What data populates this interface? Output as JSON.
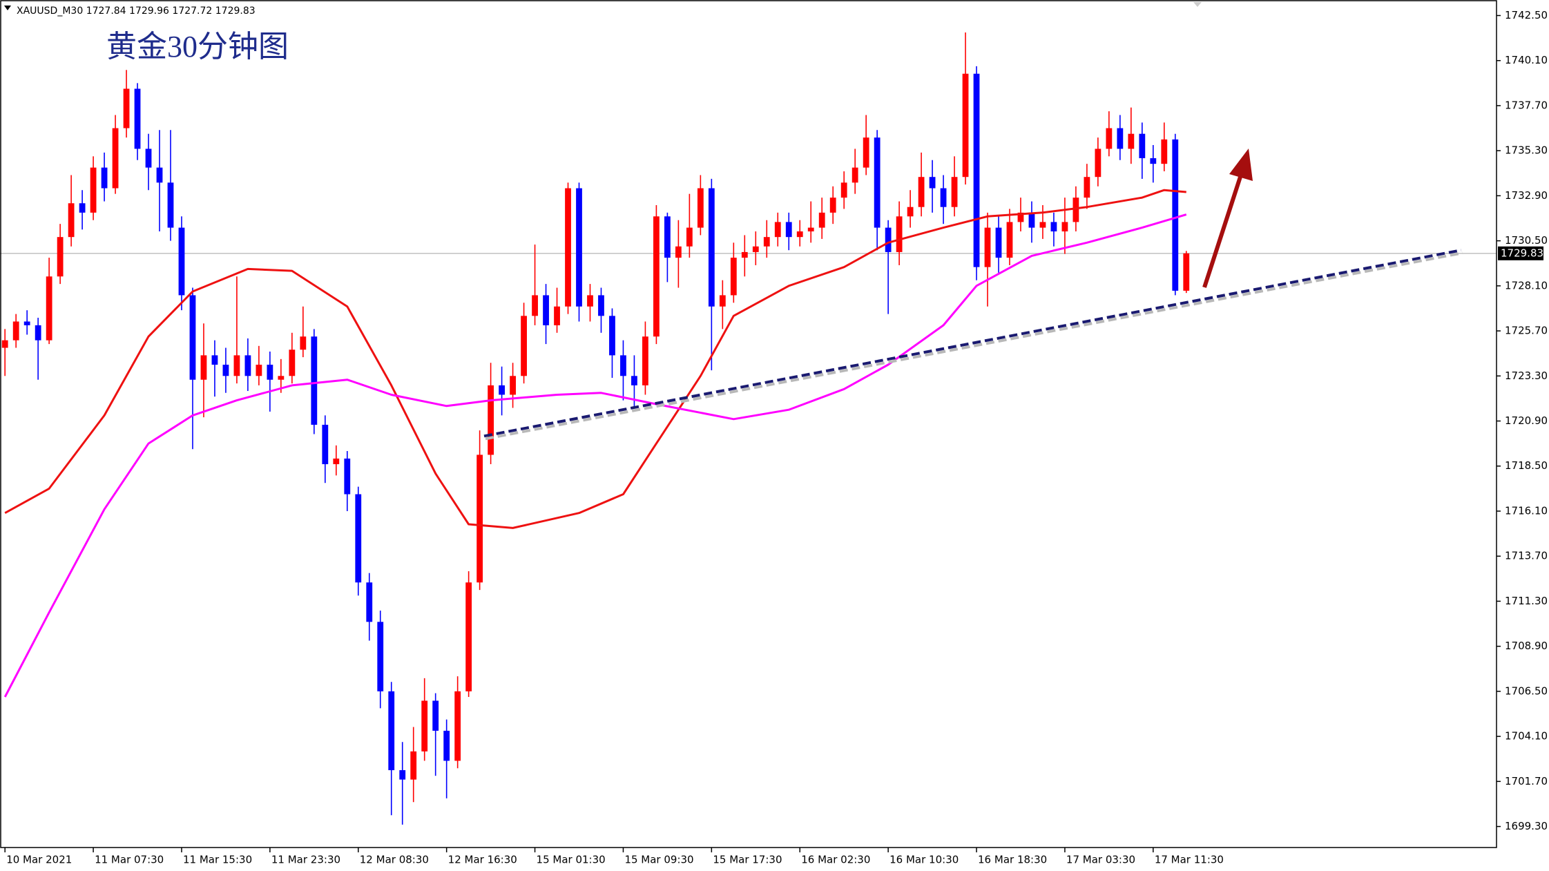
{
  "chart_data": {
    "type": "candlestick",
    "symbol": "XAUUSD_M30",
    "title": "黄金30分钟图",
    "up_color": "#ff0000",
    "down_color": "#0000ff",
    "open": [
      1724.8,
      1725.2,
      1726.2,
      1726.0,
      1725.2,
      1728.6,
      1730.7,
      1732.5,
      1732.0,
      1734.4,
      1733.3,
      1736.5,
      1738.6,
      1735.4,
      1734.4,
      1733.6,
      1731.2,
      1727.6,
      1723.1,
      1724.4,
      1723.9,
      1723.3,
      1724.4,
      1723.3,
      1723.9,
      1723.1,
      1723.3,
      1724.7,
      1725.4,
      1720.7,
      1718.6,
      1718.9,
      1717.0,
      1712.3,
      1710.2,
      1706.5,
      1702.3,
      1701.8,
      1703.3,
      1706.0,
      1704.4,
      1702.8,
      1706.5,
      1712.3,
      1719.1,
      1722.8,
      1722.3,
      1723.3,
      1726.5,
      1727.6,
      1726.0,
      1727.0,
      1733.3,
      1727.0,
      1727.6,
      1726.5,
      1724.4,
      1723.3,
      1722.8,
      1725.4,
      1731.8,
      1729.6,
      1730.2,
      1731.2,
      1733.3,
      1727.0,
      1727.6,
      1729.6,
      1729.9,
      1730.2,
      1730.7,
      1731.5,
      1730.7,
      1731.0,
      1731.2,
      1732.0,
      1732.8,
      1733.6,
      1734.4,
      1736.0,
      1731.2,
      1729.9,
      1731.8,
      1732.3,
      1733.9,
      1733.3,
      1732.3,
      1733.9,
      1739.4,
      1729.1,
      1731.2,
      1729.6,
      1731.5,
      1732.0,
      1731.2,
      1731.5,
      1731.0,
      1731.5,
      1732.8,
      1733.9,
      1735.4,
      1736.5,
      1735.4,
      1736.2,
      1734.9,
      1734.6,
      1735.9,
      1727.84
    ],
    "high": [
      1725.8,
      1726.6,
      1726.8,
      1726.4,
      1729.6,
      1731.4,
      1734.0,
      1733.2,
      1735.0,
      1735.2,
      1737.2,
      1739.6,
      1738.9,
      1736.2,
      1736.4,
      1736.4,
      1731.8,
      1728.0,
      1726.1,
      1725.2,
      1724.8,
      1728.6,
      1725.3,
      1724.9,
      1724.6,
      1724.2,
      1725.6,
      1727.0,
      1725.8,
      1721.2,
      1719.6,
      1719.3,
      1717.4,
      1712.8,
      1710.8,
      1707.0,
      1703.8,
      1704.6,
      1707.2,
      1706.4,
      1705.0,
      1707.3,
      1712.9,
      1720.4,
      1724.0,
      1723.8,
      1724.0,
      1727.2,
      1730.3,
      1728.2,
      1728.0,
      1733.6,
      1733.6,
      1728.2,
      1728.0,
      1726.9,
      1725.2,
      1724.4,
      1726.2,
      1732.4,
      1732.0,
      1731.6,
      1733.0,
      1734.0,
      1733.8,
      1728.4,
      1730.4,
      1730.8,
      1731.0,
      1731.6,
      1732.0,
      1732.0,
      1731.6,
      1732.6,
      1732.8,
      1733.4,
      1734.2,
      1735.4,
      1737.2,
      1736.4,
      1731.6,
      1732.6,
      1733.2,
      1735.2,
      1734.8,
      1734.0,
      1735.0,
      1741.6,
      1739.8,
      1732.0,
      1731.8,
      1732.2,
      1732.8,
      1732.6,
      1732.4,
      1732.0,
      1732.8,
      1733.4,
      1734.6,
      1736.0,
      1737.4,
      1737.2,
      1737.6,
      1736.8,
      1735.6,
      1736.8,
      1736.2,
      1729.96
    ],
    "low": [
      1723.3,
      1724.8,
      1725.5,
      1723.1,
      1725.0,
      1728.2,
      1730.2,
      1731.1,
      1731.6,
      1732.6,
      1733.0,
      1736.0,
      1734.8,
      1733.2,
      1731.0,
      1730.5,
      1726.8,
      1719.4,
      1721.1,
      1722.2,
      1722.4,
      1722.9,
      1722.5,
      1722.8,
      1721.4,
      1722.4,
      1722.9,
      1724.3,
      1720.2,
      1717.6,
      1718.0,
      1716.1,
      1711.6,
      1709.2,
      1705.6,
      1699.9,
      1699.4,
      1700.6,
      1702.8,
      1702.0,
      1700.8,
      1702.4,
      1706.2,
      1711.9,
      1718.6,
      1721.2,
      1721.6,
      1722.9,
      1726.0,
      1725.0,
      1725.6,
      1726.6,
      1726.2,
      1726.2,
      1725.6,
      1723.2,
      1722.0,
      1721.6,
      1722.3,
      1725.0,
      1728.3,
      1728.0,
      1729.6,
      1730.8,
      1723.6,
      1725.8,
      1727.2,
      1728.6,
      1729.2,
      1729.6,
      1730.2,
      1730.0,
      1730.2,
      1730.4,
      1730.6,
      1731.4,
      1732.2,
      1733.0,
      1734.0,
      1730.0,
      1726.6,
      1729.2,
      1731.2,
      1731.8,
      1732.0,
      1731.4,
      1731.8,
      1733.5,
      1728.4,
      1727.0,
      1728.8,
      1729.2,
      1731.0,
      1730.4,
      1730.6,
      1730.2,
      1729.8,
      1731.0,
      1732.2,
      1733.4,
      1735.0,
      1734.8,
      1734.6,
      1733.8,
      1733.6,
      1734.2,
      1727.6,
      1727.72
    ],
    "close": [
      1725.2,
      1726.2,
      1726.0,
      1725.2,
      1728.6,
      1730.7,
      1732.5,
      1732.0,
      1734.4,
      1733.3,
      1736.5,
      1738.6,
      1735.4,
      1734.4,
      1733.6,
      1731.2,
      1727.6,
      1723.1,
      1724.4,
      1723.9,
      1723.3,
      1724.4,
      1723.3,
      1723.9,
      1723.1,
      1723.3,
      1724.7,
      1725.4,
      1720.7,
      1718.6,
      1718.9,
      1717.0,
      1712.3,
      1710.2,
      1706.5,
      1702.3,
      1701.8,
      1703.3,
      1706.0,
      1704.4,
      1702.8,
      1706.5,
      1712.3,
      1719.1,
      1722.8,
      1722.3,
      1723.3,
      1726.5,
      1727.6,
      1726.0,
      1727.0,
      1733.3,
      1727.0,
      1727.6,
      1726.5,
      1724.4,
      1723.3,
      1722.8,
      1725.4,
      1731.8,
      1729.6,
      1730.2,
      1731.2,
      1733.3,
      1727.0,
      1727.6,
      1729.6,
      1729.9,
      1730.2,
      1730.7,
      1731.5,
      1730.7,
      1731.0,
      1731.2,
      1732.0,
      1732.8,
      1733.6,
      1734.4,
      1736.0,
      1731.2,
      1729.9,
      1731.8,
      1732.3,
      1733.9,
      1733.3,
      1732.3,
      1733.9,
      1739.4,
      1729.1,
      1731.2,
      1729.6,
      1731.5,
      1732.0,
      1731.2,
      1731.5,
      1731.0,
      1731.5,
      1732.8,
      1733.9,
      1735.4,
      1736.5,
      1735.4,
      1736.2,
      1734.9,
      1734.6,
      1735.9,
      1727.84,
      1729.83
    ],
    "lines": [
      {
        "color": "#ee1111",
        "x": [
          0,
          4,
          9,
          13,
          17,
          22,
          26,
          31,
          35,
          39,
          42,
          46,
          52,
          56,
          59,
          63,
          66,
          71,
          76,
          80,
          85,
          89,
          94,
          98,
          103,
          105,
          107
        ],
        "values": [
          1716.0,
          1717.3,
          1721.2,
          1725.4,
          1727.8,
          1729.0,
          1728.9,
          1727.0,
          1722.8,
          1718.1,
          1715.4,
          1715.2,
          1716.0,
          1717.0,
          1719.7,
          1723.3,
          1726.5,
          1728.1,
          1729.1,
          1730.4,
          1731.2,
          1731.8,
          1732.0,
          1732.3,
          1732.8,
          1733.2,
          1733.1
        ]
      },
      {
        "color": "#ff00ff",
        "x": [
          0,
          4,
          9,
          13,
          17,
          21,
          26,
          31,
          35,
          40,
          44,
          50,
          54,
          59,
          66,
          71,
          76,
          80,
          85,
          88,
          93,
          98,
          103,
          107
        ],
        "values": [
          1706.2,
          1710.7,
          1716.2,
          1719.7,
          1721.2,
          1722.0,
          1722.8,
          1723.1,
          1722.3,
          1721.7,
          1722.0,
          1722.3,
          1722.4,
          1721.8,
          1721.0,
          1721.5,
          1722.6,
          1723.9,
          1726.0,
          1728.1,
          1729.7,
          1730.4,
          1731.2,
          1731.9
        ]
      }
    ],
    "trendline": {
      "color": "#1a1a70",
      "x": [
        43.4,
        131.9
      ],
      "values": [
        1720.1,
        1730.0
      ]
    },
    "xlim": [
      -0.45,
      135.1
    ],
    "ylim": [
      1698.18,
      1743.18
    ],
    "xticks": [
      {
        "value": 0,
        "label": "10 Mar 2021"
      },
      {
        "value": 8,
        "label": "11 Mar 07:30"
      },
      {
        "value": 16,
        "label": "11 Mar 15:30"
      },
      {
        "value": 24,
        "label": "11 Mar 23:30"
      },
      {
        "value": 32,
        "label": "12 Mar 08:30"
      },
      {
        "value": 40,
        "label": "12 Mar 16:30"
      },
      {
        "value": 48,
        "label": "15 Mar 01:30"
      },
      {
        "value": 56,
        "label": "15 Mar 09:30"
      },
      {
        "value": 64,
        "label": "15 Mar 17:30"
      },
      {
        "value": 72,
        "label": "16 Mar 02:30"
      },
      {
        "value": 80,
        "label": "16 Mar 10:30"
      },
      {
        "value": 88,
        "label": "16 Mar 18:30"
      },
      {
        "value": 96,
        "label": "17 Mar 03:30"
      },
      {
        "value": 104,
        "label": "17 Mar 11:30"
      }
    ],
    "yticks": [
      {
        "value": 1699.3,
        "label": "1699.30"
      },
      {
        "value": 1701.7,
        "label": "1701.70"
      },
      {
        "value": 1704.1,
        "label": "1704.10"
      },
      {
        "value": 1706.5,
        "label": "1706.50"
      },
      {
        "value": 1708.9,
        "label": "1708.90"
      },
      {
        "value": 1711.3,
        "label": "1711.30"
      },
      {
        "value": 1713.7,
        "label": "1713.70"
      },
      {
        "value": 1716.1,
        "label": "1716.10"
      },
      {
        "value": 1718.5,
        "label": "1718.50"
      },
      {
        "value": 1720.9,
        "label": "1720.90"
      },
      {
        "value": 1723.3,
        "label": "1723.30"
      },
      {
        "value": 1725.7,
        "label": "1725.70"
      },
      {
        "value": 1728.1,
        "label": "1728.10"
      },
      {
        "value": 1730.5,
        "label": "1730.50"
      },
      {
        "value": 1732.9,
        "label": "1732.90"
      },
      {
        "value": 1735.3,
        "label": "1735.30"
      },
      {
        "value": 1737.7,
        "label": "1737.70"
      },
      {
        "value": 1740.1,
        "label": "1740.10"
      },
      {
        "value": 1742.5,
        "label": "1742.50"
      }
    ]
  }
}
